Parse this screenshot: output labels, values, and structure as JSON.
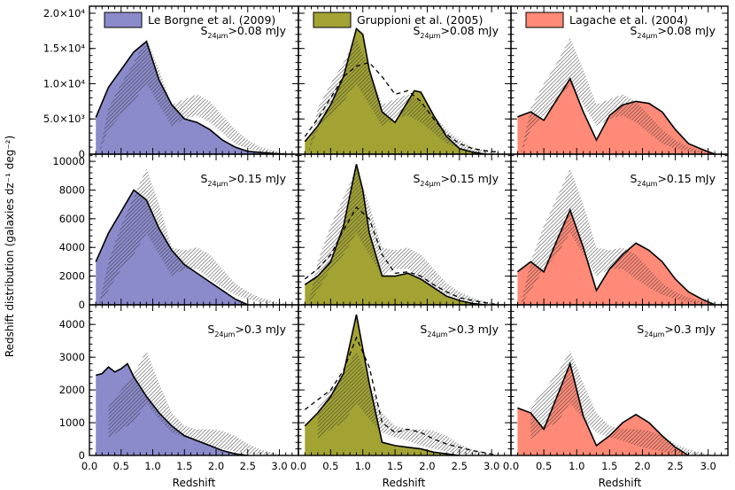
{
  "chart_data": {
    "type": "area",
    "xlabel": "Redshift",
    "ylabel": "Redshift distribution (galaxies dz⁻¹ deg⁻²)",
    "xlim": [
      0.0,
      3.3
    ],
    "x_ticks": [
      "0.0",
      "0.5",
      "1.0",
      "1.5",
      "2.0",
      "2.5",
      "3.0"
    ],
    "columns": [
      {
        "legend": "Le Borgne et al. (2009)",
        "color": "#8b8bcc"
      },
      {
        "legend": "Gruppioni et al. (2005)",
        "color": "#a3a334"
      },
      {
        "legend": "Lagache et al. (2004)",
        "color": "#ff8a78"
      }
    ],
    "rows": [
      {
        "threshold": {
          "prefix": "S",
          "sub": "24μm",
          "suffix": ">0.08 mJy"
        },
        "ylim": [
          0,
          21000
        ],
        "y_ticks": [
          {
            "value": 0,
            "label": "0"
          },
          {
            "value": 5000,
            "label": "5.0×10³"
          },
          {
            "value": 10000,
            "label": "1.0×10⁴"
          },
          {
            "value": 15000,
            "label": "1.5×10⁴"
          },
          {
            "value": 20000,
            "label": "2.0×10⁴"
          }
        ],
        "observed": {
          "x": [
            0.15,
            0.3,
            0.5,
            0.7,
            0.9,
            1.1,
            1.3,
            1.5,
            1.7,
            1.9,
            2.1,
            2.3,
            2.5,
            2.7,
            2.9,
            3.1
          ],
          "low": [
            0,
            3500,
            5500,
            7500,
            10000,
            7000,
            4000,
            5000,
            5500,
            4500,
            3000,
            1500,
            800,
            400,
            200,
            100
          ],
          "high": [
            0,
            6500,
            10000,
            13000,
            16500,
            12000,
            7000,
            7800,
            8500,
            7500,
            5500,
            3500,
            2000,
            1000,
            500,
            200
          ]
        },
        "panels": [
          {
            "model": {
              "x": [
                0.1,
                0.3,
                0.5,
                0.7,
                0.9,
                1.1,
                1.3,
                1.5,
                1.7,
                1.9,
                2.1,
                2.3,
                2.5,
                2.7,
                2.9,
                3.1
              ],
              "y": [
                5200,
                9500,
                12000,
                14500,
                16000,
                10500,
                7000,
                5000,
                4500,
                3500,
                2000,
                1000,
                400,
                250,
                100,
                0
              ]
            },
            "dashed": null
          },
          {
            "model": {
              "x": [
                0.1,
                0.3,
                0.5,
                0.7,
                0.9,
                1.0,
                1.1,
                1.3,
                1.5,
                1.7,
                1.8,
                1.9,
                2.1,
                2.3,
                2.5,
                2.7,
                2.9
              ],
              "y": [
                1800,
                4000,
                7000,
                11000,
                17800,
                17000,
                12000,
                6000,
                4500,
                7500,
                9000,
                8800,
                5500,
                2500,
                800,
                300,
                0
              ]
            },
            "dashed": {
              "x": [
                0.1,
                0.3,
                0.5,
                0.7,
                0.9,
                1.1,
                1.3,
                1.5,
                1.7,
                1.9,
                2.1,
                2.3,
                2.5,
                2.7,
                2.9,
                3.1
              ],
              "y": [
                2500,
                5000,
                8000,
                11000,
                12500,
                13000,
                11000,
                8500,
                9000,
                7500,
                5000,
                2800,
                1500,
                800,
                500,
                300
              ]
            }
          },
          {
            "model": {
              "x": [
                0.1,
                0.3,
                0.5,
                0.7,
                0.9,
                1.1,
                1.3,
                1.5,
                1.7,
                1.9,
                2.1,
                2.3,
                2.5,
                2.7,
                2.9,
                3.1
              ],
              "y": [
                5300,
                6000,
                4800,
                7800,
                10700,
                6000,
                2000,
                5500,
                7000,
                7500,
                7200,
                6000,
                3500,
                1500,
                700,
                0
              ]
            },
            "dashed": null
          }
        ]
      },
      {
        "threshold": {
          "prefix": "S",
          "sub": "24μm",
          "suffix": ">0.15 mJy"
        },
        "ylim": [
          0,
          10500
        ],
        "y_ticks": [
          {
            "value": 0,
            "label": "0"
          },
          {
            "value": 2000,
            "label": "2000"
          },
          {
            "value": 4000,
            "label": "4000"
          },
          {
            "value": 6000,
            "label": "6000"
          },
          {
            "value": 8000,
            "label": "8000"
          },
          {
            "value": 10000,
            "label": "10000"
          }
        ],
        "observed": {
          "x": [
            0.15,
            0.3,
            0.5,
            0.7,
            0.9,
            1.1,
            1.3,
            1.5,
            1.7,
            1.9,
            2.1,
            2.3,
            2.5,
            2.7,
            2.9,
            3.1
          ],
          "low": [
            0,
            1000,
            2500,
            3500,
            5000,
            3500,
            2000,
            2500,
            2500,
            1800,
            1200,
            700,
            400,
            200,
            100,
            0
          ],
          "high": [
            0,
            3000,
            5500,
            7500,
            9500,
            7000,
            4000,
            3800,
            4000,
            3500,
            2500,
            1500,
            900,
            500,
            250,
            100
          ]
        },
        "panels": [
          {
            "model": {
              "x": [
                0.1,
                0.3,
                0.5,
                0.7,
                0.9,
                1.1,
                1.3,
                1.5,
                1.7,
                1.9,
                2.1,
                2.3,
                2.5
              ],
              "y": [
                3000,
                5000,
                6500,
                8000,
                7300,
                5300,
                3800,
                2800,
                2200,
                1600,
                1000,
                400,
                0
              ]
            },
            "dashed": null
          },
          {
            "model": {
              "x": [
                0.1,
                0.3,
                0.5,
                0.7,
                0.9,
                1.0,
                1.1,
                1.3,
                1.5,
                1.7,
                1.9,
                2.1,
                2.3,
                2.5,
                2.7,
                2.9
              ],
              "y": [
                1400,
                2000,
                3000,
                5500,
                9800,
                8000,
                5000,
                2000,
                2000,
                2200,
                1800,
                1200,
                600,
                300,
                100,
                0
              ]
            },
            "dashed": {
              "x": [
                0.1,
                0.3,
                0.5,
                0.7,
                0.9,
                1.1,
                1.3,
                1.5,
                1.7,
                1.9,
                2.1,
                2.3,
                2.5,
                2.7,
                2.9,
                3.1
              ],
              "y": [
                1800,
                2500,
                3500,
                5200,
                6800,
                6000,
                3500,
                2200,
                2300,
                2000,
                1400,
                900,
                500,
                300,
                150,
                0
              ]
            }
          },
          {
            "model": {
              "x": [
                0.1,
                0.3,
                0.5,
                0.7,
                0.9,
                1.1,
                1.3,
                1.5,
                1.7,
                1.9,
                2.1,
                2.3,
                2.5,
                2.7,
                2.9,
                3.1
              ],
              "y": [
                2300,
                3000,
                2300,
                4500,
                6600,
                4000,
                1000,
                2500,
                3500,
                4300,
                3800,
                3000,
                1800,
                900,
                400,
                0
              ]
            },
            "dashed": null
          }
        ]
      },
      {
        "threshold": {
          "prefix": "S",
          "sub": "24μm",
          "suffix": ">0.3 mJy"
        },
        "ylim": [
          0,
          4600
        ],
        "y_ticks": [
          {
            "value": 0,
            "label": "0"
          },
          {
            "value": 1000,
            "label": "1000"
          },
          {
            "value": 2000,
            "label": "2000"
          },
          {
            "value": 3000,
            "label": "3000"
          },
          {
            "value": 4000,
            "label": "4000"
          }
        ],
        "observed": {
          "x": [
            0.3,
            0.5,
            0.7,
            0.9,
            1.1,
            1.3,
            1.5,
            1.7,
            1.9,
            2.1,
            2.3,
            2.5,
            2.7,
            2.9,
            3.1
          ],
          "low": [
            500,
            800,
            1000,
            1600,
            1100,
            700,
            550,
            450,
            300,
            200,
            120,
            60,
            30,
            10,
            0
          ],
          "high": [
            1500,
            2000,
            2500,
            3200,
            2200,
            1300,
            900,
            800,
            800,
            750,
            600,
            350,
            180,
            80,
            0
          ]
        },
        "panels": [
          {
            "model": {
              "x": [
                0.1,
                0.2,
                0.3,
                0.4,
                0.5,
                0.6,
                0.7,
                0.9,
                1.1,
                1.3,
                1.5,
                1.7,
                1.9,
                2.1,
                2.3,
                2.5
              ],
              "y": [
                2450,
                2500,
                2700,
                2550,
                2650,
                2800,
                2400,
                1800,
                1300,
                900,
                600,
                450,
                300,
                150,
                50,
                0
              ]
            },
            "dashed": null
          },
          {
            "model": {
              "x": [
                0.1,
                0.3,
                0.5,
                0.7,
                0.9,
                1.1,
                1.3,
                1.5,
                1.7,
                1.9,
                2.1,
                2.3,
                2.5
              ],
              "y": [
                900,
                1300,
                1800,
                2500,
                4300,
                2200,
                400,
                300,
                250,
                200,
                100,
                50,
                0
              ]
            },
            "dashed": {
              "x": [
                0.1,
                0.3,
                0.5,
                0.7,
                0.9,
                1.1,
                1.3,
                1.5,
                1.7,
                1.9,
                2.1,
                2.3,
                2.5,
                2.7,
                2.9,
                3.1
              ],
              "y": [
                1400,
                1700,
                2000,
                2600,
                3600,
                2700,
                1000,
                700,
                800,
                700,
                500,
                350,
                250,
                150,
                80,
                0
              ]
            }
          },
          {
            "model": {
              "x": [
                0.1,
                0.3,
                0.5,
                0.7,
                0.9,
                1.1,
                1.3,
                1.5,
                1.7,
                1.9,
                2.1,
                2.3,
                2.5,
                2.7
              ],
              "y": [
                1450,
                1300,
                800,
                1800,
                2800,
                1200,
                300,
                600,
                1000,
                1250,
                1000,
                600,
                250,
                0
              ]
            },
            "dashed": null
          }
        ]
      }
    ]
  }
}
